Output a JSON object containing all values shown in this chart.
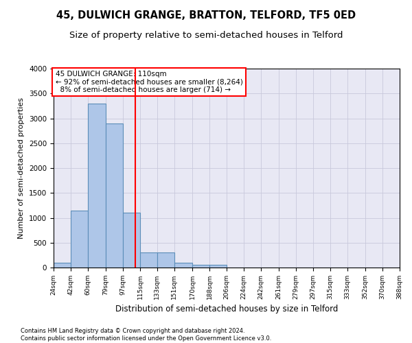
{
  "title1": "45, DULWICH GRANGE, BRATTON, TELFORD, TF5 0ED",
  "title2": "Size of property relative to semi-detached houses in Telford",
  "xlabel": "Distribution of semi-detached houses by size in Telford",
  "ylabel": "Number of semi-detached properties",
  "footnote": "Contains HM Land Registry data © Crown copyright and database right 2024.\nContains public sector information licensed under the Open Government Licence v3.0.",
  "bin_edges": [
    24,
    42,
    60,
    79,
    97,
    115,
    133,
    151,
    170,
    188,
    206,
    224,
    242,
    261,
    279,
    297,
    315,
    333,
    352,
    370,
    388
  ],
  "bar_heights": [
    100,
    1150,
    3300,
    2900,
    1100,
    310,
    310,
    100,
    50,
    50,
    0,
    0,
    0,
    0,
    0,
    0,
    0,
    0,
    0,
    0
  ],
  "bar_color": "#aec6e8",
  "bar_edge_color": "#5b8db8",
  "annotation_line1": "45 DULWICH GRANGE: 110sqm",
  "annotation_line2": "← 92% of semi-detached houses are smaller (8,264)",
  "annotation_line3": "  8% of semi-detached houses are larger (714) →",
  "annotation_box_color": "white",
  "annotation_box_edge_color": "red",
  "vline_color": "red",
  "vline_x": 110,
  "ylim": [
    0,
    4000
  ],
  "yticks": [
    0,
    500,
    1000,
    1500,
    2000,
    2500,
    3000,
    3500,
    4000
  ],
  "grid_color": "#c8c8dc",
  "background_color": "#e8e8f4",
  "title1_fontsize": 10.5,
  "title2_fontsize": 9.5,
  "xlabel_fontsize": 8.5,
  "ylabel_fontsize": 8
}
